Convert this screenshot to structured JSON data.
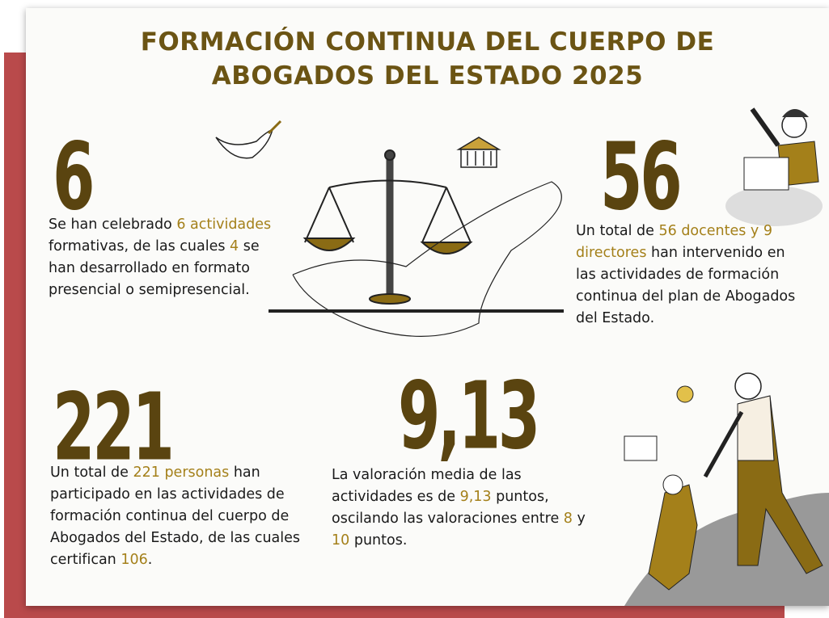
{
  "title": [
    "FORMACIÓN CONTINUA DEL CUERPO DE",
    "ABOGADOS DEL ESTADO 2025"
  ],
  "stats": [
    {
      "number": "6",
      "text": [
        "Se han celebrado ",
        "6 actividades",
        " formativas, de las cuales ",
        "4",
        " se han desarrollado en formato presencial o semipresencial."
      ]
    },
    {
      "number": "56",
      "text": [
        "Un total de ",
        "56 docentes y 9 directores",
        " han intervenido en las actividades de formación continua del plan de Abogados del Estado."
      ]
    },
    {
      "number": "221",
      "text": [
        "Un total de ",
        "221 personas",
        " han participado en las actividades de formación continua del cuerpo de Abogados del Estado, de las cuales certifican ",
        "106",
        "."
      ]
    },
    {
      "number": "9,13",
      "text": [
        "La valoración media de las actividades es de ",
        "9,13",
        " puntos, oscilando las valoraciones entre ",
        "8",
        " y ",
        "10",
        " puntos."
      ]
    }
  ]
}
